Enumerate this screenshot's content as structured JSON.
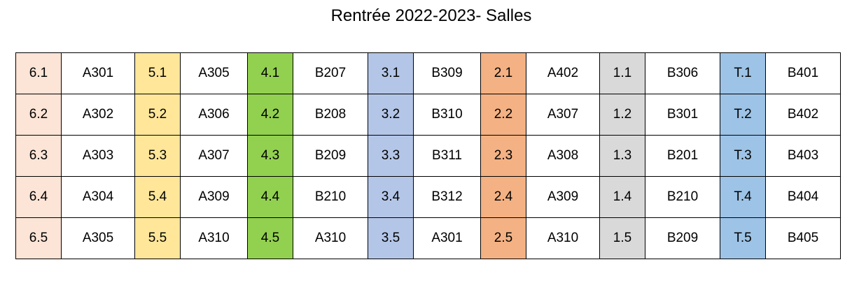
{
  "title": "Rentrée 2022-2023- Salles",
  "levels": [
    {
      "color": "#fce4d6",
      "entries": [
        {
          "class": "6.1",
          "room": "A301"
        },
        {
          "class": "6.2",
          "room": "A302"
        },
        {
          "class": "6.3",
          "room": "A303"
        },
        {
          "class": "6.4",
          "room": "A304"
        },
        {
          "class": "6.5",
          "room": "A305"
        }
      ]
    },
    {
      "color": "#ffe699",
      "entries": [
        {
          "class": "5.1",
          "room": "A305"
        },
        {
          "class": "5.2",
          "room": "A306"
        },
        {
          "class": "5.3",
          "room": "A307"
        },
        {
          "class": "5.4",
          "room": "A309"
        },
        {
          "class": "5.5",
          "room": "A310"
        }
      ]
    },
    {
      "color": "#92d050",
      "entries": [
        {
          "class": "4.1",
          "room": "B207"
        },
        {
          "class": "4.2",
          "room": "B208"
        },
        {
          "class": "4.3",
          "room": "B209"
        },
        {
          "class": "4.4",
          "room": "B210"
        },
        {
          "class": "4.5",
          "room": "A310"
        }
      ]
    },
    {
      "color": "#b4c6e7",
      "entries": [
        {
          "class": "3.1",
          "room": "B309"
        },
        {
          "class": "3.2",
          "room": "B310"
        },
        {
          "class": "3.3",
          "room": "B311"
        },
        {
          "class": "3.4",
          "room": "B312"
        },
        {
          "class": "3.5",
          "room": "A301"
        }
      ]
    },
    {
      "color": "#f4b183",
      "entries": [
        {
          "class": "2.1",
          "room": "A402"
        },
        {
          "class": "2.2",
          "room": "A307"
        },
        {
          "class": "2.3",
          "room": "A308"
        },
        {
          "class": "2.4",
          "room": "A309"
        },
        {
          "class": "2.5",
          "room": "A310"
        }
      ]
    },
    {
      "color": "#d9d9d9",
      "entries": [
        {
          "class": "1.1",
          "room": "B306"
        },
        {
          "class": "1.2",
          "room": "B301"
        },
        {
          "class": "1.3",
          "room": "B201"
        },
        {
          "class": "1.4",
          "room": "B210"
        },
        {
          "class": "1.5",
          "room": "B209"
        }
      ]
    },
    {
      "color": "#9dc3e6",
      "entries": [
        {
          "class": "T.1",
          "room": "B401"
        },
        {
          "class": "T.2",
          "room": "B402"
        },
        {
          "class": "T.3",
          "room": "B403"
        },
        {
          "class": "T.4",
          "room": "B404"
        },
        {
          "class": "T.5",
          "room": "B405"
        }
      ]
    }
  ]
}
